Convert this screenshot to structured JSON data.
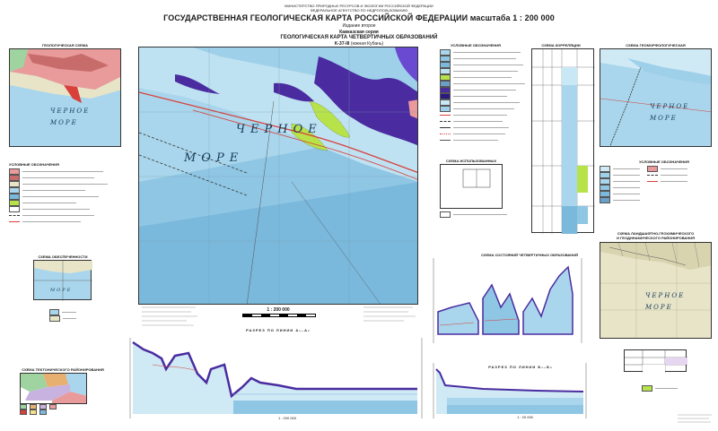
{
  "header": {
    "ministry_line1": "МИНИСТЕРСТВО ПРИРОДНЫХ РЕСУРСОВ И ЭКОЛОГИИ РОССИЙСКОЙ ФЕДЕРАЦИИ",
    "ministry_line2": "ФЕДЕРАЛЬНОЕ АГЕНТСТВО ПО НЕДРОПОЛЬЗОВАНИЮ",
    "title": "ГОСУДАРСТВЕННАЯ ГЕОЛОГИЧЕСКАЯ КАРТА РОССИЙСКОЙ ФЕДЕРАЦИИ масштаба 1 : 200 000",
    "edition": "Издание второе",
    "series": "Кавказская серия",
    "map_title": "ГЕОЛОГИЧЕСКАЯ КАРТА ЧЕТВЕРТИЧНЫХ ОБРАЗОВАНИЙ",
    "sheet": "K-37-III",
    "sheet_name": "(южная Кубань)"
  },
  "main_map": {
    "sea_word1": "ЧЕРНОЕ",
    "sea_word2": "МОРЕ",
    "scale": "1 : 200 000"
  },
  "panels": {
    "geologic_top_left": "ГЕОЛОГИЧЕСКАЯ СХЕМА",
    "geologic_top_left_sea1": "ЧЕРНОЕ",
    "geologic_top_left_sea2": "МОРЕ",
    "legend_left_title": "УСЛОВНЫЕ ОБОЗНАЧЕНИЯ",
    "small_map_title": "СХЕМА ОБЕСПЕЧЕННОСТИ",
    "small_map_sea": "МОРЕ",
    "tectonic_title": "СХЕМА ТЕКТОНИЧЕСКОГО РАЙОНИРОВАНИЯ",
    "legend_center_title": "УСЛОВНЫЕ ОБОЗНАЧЕНИЯ",
    "stratigraphy_title": "СХЕМА КОРРЕЛЯЦИИ ПОДРАЗДЕЛЕНИЙ",
    "inset_title": "СХЕМА ИСПОЛЬЗОВАННЫХ МАТЕРИАЛОВ",
    "right_top_title": "СХЕМА ГЕОМОРФОЛОГИЧЕСКАЯ",
    "right_top_sea1": "ЧЕРНОЕ",
    "right_top_sea2": "МОРЕ",
    "right_mid_title": "УСЛОВНЫЕ ОБОЗНАЧЕНИЯ",
    "right_bottom_title1": "СХЕМА ЛАНДШАФТНО-ГЕОХИМИЧЕСКОГО",
    "right_bottom_title2": "И ГЕОДИНАМИЧЕСКОГО РАЙОНИРОВАНИЯ",
    "right_bottom_sea1": "ЧЕРНОЕ",
    "right_bottom_sea2": "МОРЕ",
    "correlation_title": "СХЕМА СОСТОЯНИЙ ЧЕТВЕРТИЧНЫХ ОБРАЗОВАНИЙ"
  },
  "sections": {
    "section1_title": "РАЗРЕЗ ПО ЛИНИИ А₁–А₂",
    "section2_title": "РАЗРЕЗ ПО ЛИНИИ Б₁–Б₂",
    "vscale1": "1 : 200 000",
    "vscale2": "1 : 20 000"
  },
  "colors": {
    "sea_deep": "#7ab8dc",
    "sea_shelf": "#a9d6ec",
    "sea_light": "#cfe9f5",
    "purple": "#4a2ca0",
    "lime": "#b7e24a",
    "pink": "#e99a9a",
    "fault": "#d9403a",
    "tan": "#e8e4c8"
  }
}
